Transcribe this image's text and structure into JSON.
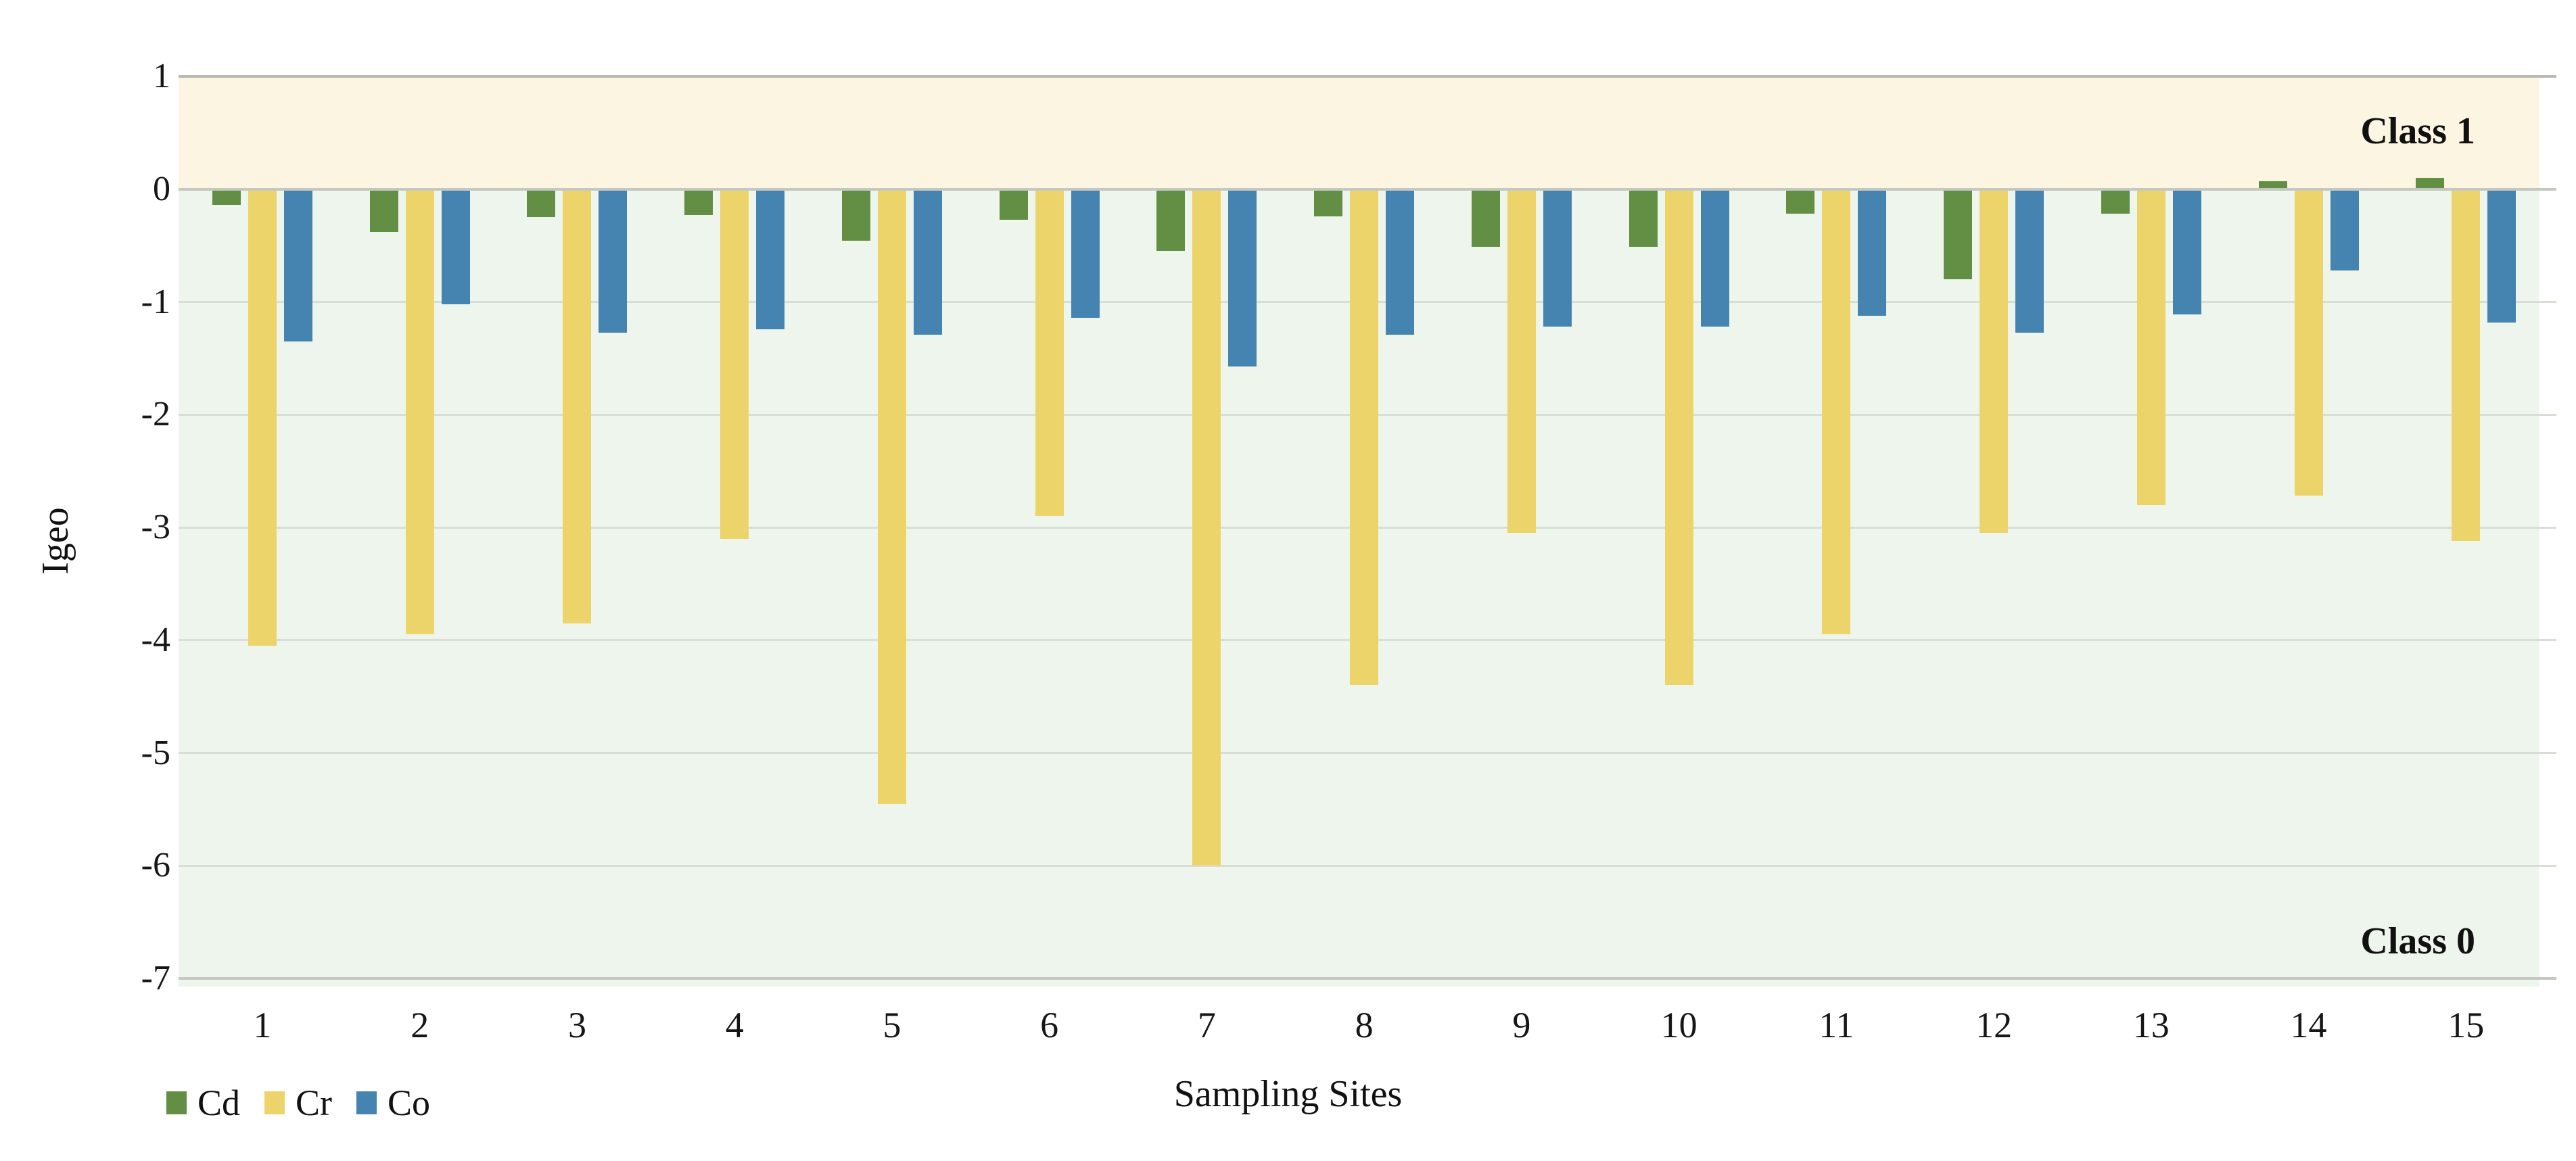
{
  "chart_data": {
    "type": "bar",
    "title": "",
    "xlabel": "Sampling Sites",
    "ylabel": "Igeo",
    "ylim": [
      -7,
      1
    ],
    "yticks": [
      1,
      0,
      -1,
      -2,
      -3,
      -4,
      -5,
      -6,
      -7
    ],
    "grid": true,
    "legend_position": "bottom-left",
    "categories": [
      "1",
      "2",
      "3",
      "4",
      "5",
      "6",
      "7",
      "8",
      "9",
      "10",
      "11",
      "12",
      "13",
      "14",
      "15"
    ],
    "series": [
      {
        "name": "Cd",
        "color": "#628f44",
        "values": [
          -0.14,
          -0.38,
          -0.25,
          -0.23,
          -0.46,
          -0.27,
          -0.55,
          -0.24,
          -0.51,
          -0.51,
          -0.22,
          -0.8,
          -0.22,
          0.07,
          0.1
        ]
      },
      {
        "name": "Cr",
        "color": "#ecd46b",
        "values": [
          -4.05,
          -3.95,
          -3.85,
          -3.1,
          -5.45,
          -2.9,
          -6.0,
          -4.4,
          -3.05,
          -4.4,
          -3.95,
          -3.05,
          -2.8,
          -2.72,
          -3.12
        ]
      },
      {
        "name": "Co",
        "color": "#4583b0",
        "values": [
          -1.35,
          -1.02,
          -1.27,
          -1.24,
          -1.29,
          -1.14,
          -1.57,
          -1.29,
          -1.22,
          -1.22,
          -1.12,
          -1.27,
          -1.11,
          -0.72,
          -1.18
        ]
      }
    ],
    "bands": [
      {
        "label": "Class 1",
        "from": 0,
        "to": 1,
        "color": "#fcf5e1"
      },
      {
        "label": "Class 0",
        "from": -7,
        "to": 0,
        "color": "#eef5ec"
      }
    ],
    "colors": {
      "gridline": "#d9ded4",
      "zero_line": "#c5c8c0",
      "top_line": "#b8bab4",
      "bottom_line": "#c5c8c0",
      "text": "#161616"
    }
  }
}
